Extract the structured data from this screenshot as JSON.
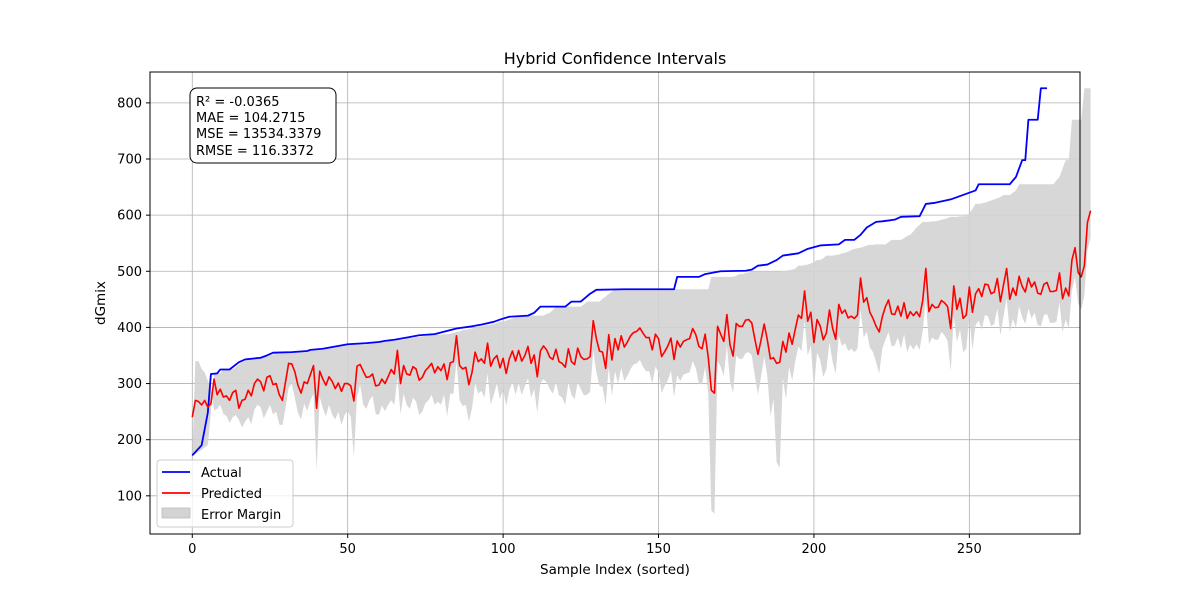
{
  "chart_data": {
    "type": "line",
    "title": "Hybrid Confidence Intervals",
    "xlabel": "Sample Index (sorted)",
    "ylabel": "dGmix",
    "xlim": [
      -13.6,
      285.6
    ],
    "ylim": [
      32,
      855
    ],
    "xticks": [
      0,
      50,
      100,
      150,
      200,
      250
    ],
    "yticks": [
      100,
      200,
      300,
      400,
      500,
      600,
      700,
      800
    ],
    "grid": true,
    "legend_position": "bottom-left",
    "metrics": [
      "R² = -0.0365",
      "MAE = 104.2715",
      "MSE = 13534.3379",
      "RMSE = 116.3372"
    ],
    "actual_knots": [
      [
        0,
        172
      ],
      [
        3,
        190
      ],
      [
        5,
        248
      ],
      [
        6,
        317
      ],
      [
        8,
        318
      ],
      [
        9,
        325
      ],
      [
        12,
        325
      ],
      [
        15,
        338
      ],
      [
        17,
        343
      ],
      [
        22,
        346
      ],
      [
        24,
        350
      ],
      [
        26,
        355
      ],
      [
        32,
        356
      ],
      [
        37,
        358
      ],
      [
        38,
        360
      ],
      [
        42,
        362
      ],
      [
        44,
        364
      ],
      [
        46,
        366
      ],
      [
        48,
        368
      ],
      [
        50,
        370
      ],
      [
        56,
        372
      ],
      [
        60,
        374
      ],
      [
        62,
        376
      ],
      [
        65,
        378
      ],
      [
        68,
        381
      ],
      [
        70,
        383
      ],
      [
        73,
        386
      ],
      [
        78,
        388
      ],
      [
        80,
        391
      ],
      [
        85,
        398
      ],
      [
        90,
        402
      ],
      [
        93,
        405
      ],
      [
        97,
        410
      ],
      [
        99,
        414
      ],
      [
        102,
        419
      ],
      [
        108,
        421
      ],
      [
        110,
        426
      ],
      [
        112,
        437
      ],
      [
        120,
        437
      ],
      [
        122,
        446
      ],
      [
        125,
        446
      ],
      [
        128,
        460
      ],
      [
        130,
        467
      ],
      [
        139,
        468
      ],
      [
        155,
        468
      ],
      [
        156,
        490
      ],
      [
        163,
        490
      ],
      [
        165,
        495
      ],
      [
        168,
        498
      ],
      [
        170,
        500
      ],
      [
        178,
        501
      ],
      [
        180,
        503
      ],
      [
        182,
        510
      ],
      [
        185,
        512
      ],
      [
        188,
        520
      ],
      [
        190,
        528
      ],
      [
        195,
        532
      ],
      [
        198,
        540
      ],
      [
        202,
        546
      ],
      [
        208,
        548
      ],
      [
        210,
        556
      ],
      [
        213,
        556
      ],
      [
        215,
        565
      ],
      [
        217,
        578
      ],
      [
        220,
        588
      ],
      [
        222,
        589
      ],
      [
        226,
        592
      ],
      [
        228,
        597
      ],
      [
        234,
        598
      ],
      [
        236,
        620
      ],
      [
        239,
        622
      ],
      [
        244,
        628
      ],
      [
        248,
        636
      ],
      [
        252,
        644
      ],
      [
        253,
        655
      ],
      [
        263,
        655
      ],
      [
        265,
        668
      ],
      [
        267,
        698
      ],
      [
        268,
        698
      ],
      [
        269,
        770
      ],
      [
        272,
        770
      ],
      [
        273,
        826
      ],
      [
        275,
        826
      ]
    ],
    "series": [
      {
        "name": "Actual",
        "color": "#0000ff",
        "values": [
          172,
          174,
          178,
          182,
          186,
          190,
          248,
          317,
          318,
          318,
          325,
          325,
          325,
          325,
          329,
          334,
          338,
          340,
          343,
          343,
          344,
          345,
          345,
          346,
          348,
          350,
          352,
          355,
          355,
          355,
          355,
          355,
          355,
          356,
          356,
          356,
          356,
          356,
          358,
          360,
          360,
          360,
          360,
          362,
          362,
          364,
          364,
          366,
          366,
          368,
          368,
          370,
          370,
          370,
          370,
          370,
          370,
          372,
          372,
          372,
          372,
          374,
          374,
          376,
          376,
          376,
          378,
          378,
          378,
          380,
          381,
          381,
          383,
          383,
          384,
          385,
          386,
          387,
          387,
          387,
          387,
          388,
          388,
          389,
          390,
          392,
          393,
          395,
          396,
          397,
          398,
          400,
          402,
          402,
          403,
          404,
          405,
          406,
          408,
          410,
          410,
          412,
          414,
          416,
          418,
          419,
          420,
          421,
          421,
          421,
          421,
          421,
          421,
          421,
          424,
          426,
          431,
          437,
          437,
          437,
          437,
          437,
          437,
          437,
          437,
          437,
          441,
          446,
          446,
          446,
          446,
          446,
          451,
          455,
          460,
          464,
          467,
          467,
          467,
          467,
          467,
          467,
          467,
          467,
          467,
          467,
          468,
          468,
          468,
          468,
          468,
          468,
          468,
          468,
          468,
          468,
          468,
          468,
          468,
          468,
          468,
          468,
          468,
          468,
          468,
          468,
          468,
          490,
          490,
          490,
          490,
          490,
          490,
          490,
          490,
          492,
          495,
          495,
          497,
          498,
          499,
          500,
          500,
          500,
          500,
          500,
          500,
          500,
          500,
          500,
          501,
          501,
          502,
          503,
          505,
          510,
          510,
          511,
          512,
          514,
          516,
          520,
          520,
          523,
          528,
          528,
          528,
          529,
          530,
          532,
          533,
          535,
          538,
          540,
          541,
          542,
          544,
          546,
          547,
          547,
          548,
          548,
          548,
          548,
          552,
          556,
          556,
          556,
          556,
          559,
          563,
          565,
          571,
          578,
          583,
          588,
          588,
          588,
          589,
          589,
          590,
          592,
          593,
          595,
          597,
          597,
          597,
          598,
          598,
          598,
          604,
          611,
          620,
          620,
          621,
          622,
          624,
          626,
          628,
          630,
          632,
          636,
          636,
          636,
          640,
          644,
          655,
          655,
          655,
          655,
          655,
          655,
          655,
          655,
          655,
          655,
          655,
          655,
          662,
          668,
          683,
          698,
          698,
          770,
          770,
          770,
          770,
          826,
          826,
          826
        ]
      },
      {
        "name": "Predicted",
        "color": "#ff0000",
        "values": [
          240,
          270,
          268,
          262,
          270,
          258,
          264,
          308,
          280,
          290,
          276,
          278,
          270,
          284,
          288,
          256,
          270,
          272,
          288,
          278,
          300,
          308,
          303,
          287,
          311,
          314,
          298,
          300,
          280,
          270,
          303,
          336,
          335,
          321,
          297,
          283,
          303,
          300,
          316,
          332,
          256,
          322,
          308,
          297,
          312,
          304,
          291,
          301,
          286,
          300,
          300,
          296,
          269,
          331,
          334,
          322,
          311,
          312,
          317,
          296,
          297,
          308,
          300,
          312,
          325,
          317,
          359,
          300,
          332,
          317,
          315,
          330,
          326,
          306,
          311,
          323,
          329,
          336,
          319,
          330,
          323,
          335,
          307,
          337,
          339,
          385,
          332,
          326,
          329,
          298,
          320,
          356,
          339,
          344,
          336,
          372,
          331,
          344,
          350,
          328,
          345,
          318,
          344,
          358,
          340,
          359,
          340,
          350,
          366,
          336,
          351,
          312,
          358,
          367,
          360,
          347,
          343,
          361,
          339,
          336,
          329,
          362,
          339,
          334,
          363,
          348,
          343,
          344,
          348,
          412,
          380,
          358,
          356,
          327,
          387,
          342,
          380,
          360,
          385,
          365,
          374,
          385,
          391,
          393,
          399,
          390,
          382,
          382,
          360,
          388,
          380,
          348,
          357,
          367,
          381,
          343,
          376,
          365,
          375,
          378,
          380,
          398,
          387,
          366,
          362,
          388,
          347,
          288,
          283,
          402,
          388,
          375,
          423,
          369,
          349,
          407,
          402,
          402,
          413,
          414,
          408,
          379,
          352,
          378,
          406,
          378,
          344,
          346,
          336,
          338,
          375,
          356,
          390,
          370,
          397,
          422,
          416,
          465,
          411,
          427,
          373,
          414,
          403,
          378,
          390,
          431,
          399,
          379,
          441,
          425,
          431,
          417,
          420,
          416,
          422,
          488,
          445,
          453,
          427,
          416,
          402,
          392,
          419,
          437,
          449,
          424,
          423,
          438,
          420,
          444,
          416,
          428,
          421,
          428,
          419,
          448,
          505,
          428,
          441,
          435,
          436,
          448,
          444,
          437,
          398,
          474,
          432,
          452,
          416,
          422,
          472,
          427,
          460,
          469,
          455,
          477,
          476,
          460,
          463,
          487,
          446,
          476,
          505,
          450,
          470,
          457,
          491,
          473,
          463,
          488,
          472,
          481,
          461,
          459,
          477,
          480,
          464,
          464,
          466,
          497,
          451,
          470,
          456,
          520,
          542,
          498,
          490,
          510,
          587,
          608
        ]
      },
      {
        "name": "Error Margin",
        "color": "#d3d3d3",
        "lower": [
          172,
          340,
          340,
          326,
          320,
          305,
          295,
          252,
          255,
          262,
          246,
          242,
          230,
          240,
          244,
          235,
          222,
          232,
          240,
          228,
          254,
          262,
          258,
          238,
          250,
          262,
          245,
          250,
          227,
          226,
          256,
          292,
          300,
          274,
          248,
          236,
          264,
          251,
          270,
          282,
          145,
          276,
          256,
          242,
          262,
          245,
          236,
          250,
          226,
          244,
          252,
          240,
          169,
          276,
          298,
          262,
          255,
          270,
          278,
          246,
          244,
          261,
          251,
          262,
          270,
          262,
          311,
          246,
          282,
          262,
          255,
          275,
          268,
          244,
          250,
          265,
          270,
          280,
          262,
          268,
          262,
          280,
          242,
          282,
          282,
          340,
          270,
          260,
          262,
          232,
          256,
          300,
          282,
          287,
          275,
          318,
          262,
          280,
          300,
          272,
          290,
          260,
          288,
          302,
          280,
          300,
          280,
          295,
          310,
          275,
          290,
          248,
          300,
          308,
          302,
          290,
          282,
          302,
          279,
          275,
          262,
          302,
          280,
          272,
          302,
          290,
          279,
          280,
          285,
          359,
          320,
          296,
          294,
          262,
          329,
          278,
          322,
          300,
          328,
          304,
          314,
          326,
          334,
          336,
          342,
          330,
          322,
          322,
          300,
          330,
          320,
          283,
          296,
          306,
          323,
          276,
          315,
          304,
          316,
          318,
          320,
          340,
          327,
          300,
          298,
          330,
          283,
          74,
          68,
          340,
          330,
          313,
          368,
          304,
          283,
          350,
          344,
          344,
          354,
          356,
          350,
          314,
          280,
          313,
          348,
          314,
          242,
          272,
          160,
          150,
          310,
          272,
          330,
          305,
          340,
          366,
          358,
          412,
          350,
          368,
          290,
          355,
          342,
          312,
          325,
          374,
          339,
          317,
          386,
          367,
          372,
          358,
          362,
          356,
          362,
          432,
          382,
          392,
          364,
          356,
          338,
          318,
          362,
          378,
          392,
          366,
          368,
          382,
          362,
          388,
          356,
          370,
          360,
          370,
          360,
          394,
          450,
          370,
          382,
          378,
          378,
          392,
          386,
          376,
          322,
          420,
          374,
          396,
          356,
          362,
          418,
          360,
          404,
          412,
          396,
          422,
          420,
          402,
          406,
          434,
          386,
          420,
          452,
          392,
          415,
          400,
          438,
          418,
          406,
          434,
          416,
          426,
          404,
          402,
          422,
          424,
          408,
          408,
          410,
          444,
          392,
          414,
          398,
          466,
          490,
          444,
          432,
          456,
          538,
          560
        ]
      }
    ]
  }
}
